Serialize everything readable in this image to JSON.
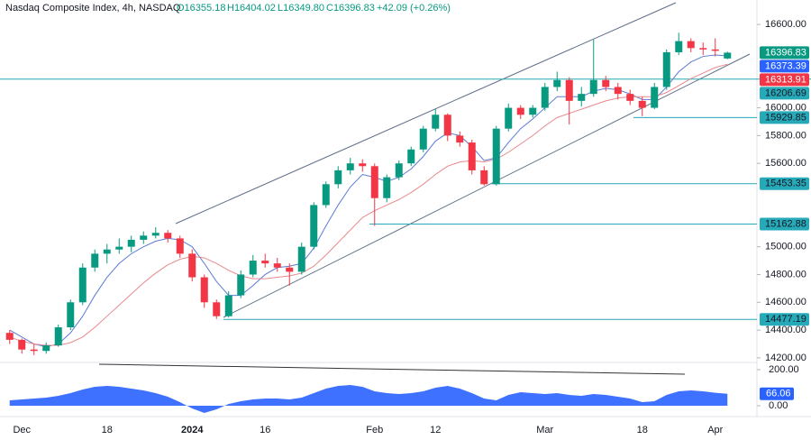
{
  "chart_data": {
    "type": "candlestick",
    "title": "Nasdaq Composite Index, 4h, NASDAQ",
    "quote": [
      "O16355.18",
      "H16404.02",
      "L16349.80",
      "C16396.83"
    ],
    "change": "+42.09 (+0.26%)",
    "categories": [
      null,
      "Dec",
      null,
      null,
      null,
      null,
      null,
      null,
      "18",
      null,
      null,
      null,
      null,
      null,
      null,
      "2024",
      null,
      null,
      null,
      null,
      null,
      "16",
      null,
      null,
      null,
      null,
      null,
      null,
      null,
      null,
      "Feb",
      null,
      null,
      null,
      null,
      "12",
      null,
      null,
      null,
      null,
      null,
      null,
      null,
      null,
      "Mar",
      null,
      null,
      null,
      null,
      null,
      null,
      null,
      "18",
      null,
      null,
      null,
      null,
      null,
      "Apr",
      null
    ],
    "ohlc": [
      [
        14380,
        14400,
        14300,
        14330
      ],
      [
        14330,
        14340,
        14230,
        14260
      ],
      [
        14260,
        14300,
        14220,
        14250
      ],
      [
        14250,
        14310,
        14230,
        14290
      ],
      [
        14290,
        14440,
        14280,
        14420
      ],
      [
        14420,
        14620,
        14400,
        14600
      ],
      [
        14600,
        14880,
        14580,
        14850
      ],
      [
        14850,
        14980,
        14820,
        14950
      ],
      [
        14950,
        15020,
        14880,
        14980
      ],
      [
        14980,
        15060,
        14950,
        15000
      ],
      [
        15000,
        15080,
        14960,
        15050
      ],
      [
        15050,
        15110,
        15020,
        15080
      ],
      [
        15080,
        15140,
        15060,
        15100
      ],
      [
        15100,
        15120,
        15030,
        15060
      ],
      [
        15060,
        15080,
        14920,
        14950
      ],
      [
        14950,
        14980,
        14750,
        14780
      ],
      [
        14780,
        14800,
        14560,
        14600
      ],
      [
        14600,
        14620,
        14480,
        14500
      ],
      [
        14500,
        14680,
        14490,
        14650
      ],
      [
        14650,
        14830,
        14630,
        14800
      ],
      [
        14800,
        14940,
        14780,
        14900
      ],
      [
        14900,
        14950,
        14850,
        14880
      ],
      [
        14880,
        14920,
        14820,
        14850
      ],
      [
        14850,
        14880,
        14720,
        14820
      ],
      [
        14820,
        15030,
        14800,
        15000
      ],
      [
        15000,
        15320,
        14980,
        15300
      ],
      [
        15300,
        15470,
        15280,
        15450
      ],
      [
        15450,
        15580,
        15420,
        15550
      ],
      [
        15550,
        15640,
        15520,
        15600
      ],
      [
        15600,
        15630,
        15540,
        15580
      ],
      [
        15580,
        15600,
        15150,
        15350
      ],
      [
        15350,
        15520,
        15320,
        15500
      ],
      [
        15500,
        15620,
        15480,
        15600
      ],
      [
        15600,
        15720,
        15580,
        15700
      ],
      [
        15700,
        15870,
        15680,
        15850
      ],
      [
        15850,
        15990,
        15830,
        15950
      ],
      [
        15950,
        15960,
        15760,
        15800
      ],
      [
        15800,
        15830,
        15720,
        15750
      ],
      [
        15750,
        15770,
        15520,
        15550
      ],
      [
        15550,
        15580,
        15440,
        15450
      ],
      [
        15450,
        15870,
        15440,
        15850
      ],
      [
        15850,
        16030,
        15830,
        16000
      ],
      [
        16000,
        16020,
        15920,
        15950
      ],
      [
        15950,
        16020,
        15930,
        16000
      ],
      [
        16000,
        16180,
        15980,
        16150
      ],
      [
        16150,
        16260,
        16120,
        16200
      ],
      [
        16200,
        16220,
        15880,
        16050
      ],
      [
        16050,
        16150,
        16010,
        16100
      ],
      [
        16100,
        16490,
        16080,
        16200
      ],
      [
        16200,
        16230,
        16120,
        16150
      ],
      [
        16150,
        16180,
        16060,
        16100
      ],
      [
        16100,
        16130,
        16020,
        16050
      ],
      [
        16050,
        16080,
        15940,
        16000
      ],
      [
        16000,
        16180,
        15990,
        16150
      ],
      [
        16150,
        16420,
        16130,
        16400
      ],
      [
        16400,
        16540,
        16380,
        16480
      ],
      [
        16480,
        16500,
        16400,
        16430
      ],
      [
        16430,
        16470,
        16380,
        16420
      ],
      [
        16420,
        16500,
        16370,
        16410
      ],
      [
        16355.18,
        16404.02,
        16349.8,
        16396.83
      ]
    ],
    "up_color": "#089981",
    "down_color": "#f23645",
    "series": [
      {
        "color": "#5b7bd5",
        "values": [
          14400,
          14350,
          14300,
          14280,
          14300,
          14380,
          14500,
          14650,
          14780,
          14880,
          14950,
          15000,
          15040,
          15060,
          15050,
          15000,
          14880,
          14750,
          14650,
          14650,
          14720,
          14800,
          14850,
          14860,
          14880,
          14990,
          15150,
          15300,
          15430,
          15520,
          15500,
          15470,
          15500,
          15560,
          15650,
          15760,
          15820,
          15800,
          15720,
          15620,
          15640,
          15750,
          15850,
          15920,
          16000,
          16080,
          16080,
          16080,
          16120,
          16140,
          16130,
          16100,
          16060,
          16060,
          16150,
          16260,
          16330,
          16370,
          16380,
          16373.39
        ]
      },
      {
        "color": "#e8898e",
        "values": [
          14350,
          14320,
          14300,
          14290,
          14290,
          14310,
          14350,
          14420,
          14500,
          14580,
          14660,
          14740,
          14810,
          14870,
          14910,
          14930,
          14920,
          14880,
          14830,
          14790,
          14770,
          14770,
          14780,
          14790,
          14810,
          14860,
          14940,
          15030,
          15120,
          15210,
          15260,
          15300,
          15340,
          15390,
          15450,
          15520,
          15580,
          15610,
          15620,
          15610,
          15630,
          15680,
          15740,
          15800,
          15870,
          15930,
          15960,
          15990,
          16020,
          16050,
          16070,
          16080,
          16080,
          16080,
          16110,
          16160,
          16210,
          16250,
          16290,
          16313.91
        ]
      }
    ],
    "ylim": [
      14167,
      16776
    ],
    "yticks": [
      {
        "value": 16600,
        "label": "16600.00"
      },
      {
        "value": 16000,
        "label": "16000.00"
      },
      {
        "value": 15800,
        "label": "15800.00"
      },
      {
        "value": 15600,
        "label": "15600.00"
      },
      {
        "value": 15000,
        "label": "15000.00"
      },
      {
        "value": 14800,
        "label": "14800.00"
      },
      {
        "value": 14600,
        "label": "14600.00"
      },
      {
        "value": 14400,
        "label": "14400.00"
      },
      {
        "value": 14200,
        "label": "14200.00"
      }
    ],
    "price_labels": [
      {
        "value": 16396.83,
        "color": "#089981"
      },
      {
        "value": 16373.39,
        "color": "#2962ff"
      },
      {
        "value": 16313.91,
        "color": "#f23645"
      }
    ],
    "levels": [
      16206.69,
      15929.85,
      15453.35,
      15162.88,
      14477.19
    ],
    "level_color": "#26a9b8",
    "oscillator": {
      "color": "#2962ff",
      "values": [
        30,
        35,
        40,
        45,
        55,
        70,
        90,
        105,
        110,
        105,
        95,
        85,
        70,
        50,
        20,
        -15,
        -40,
        -20,
        10,
        25,
        35,
        40,
        40,
        35,
        45,
        70,
        95,
        110,
        115,
        105,
        80,
        70,
        65,
        70,
        80,
        100,
        110,
        95,
        70,
        40,
        30,
        60,
        75,
        70,
        65,
        70,
        60,
        55,
        65,
        60,
        50,
        40,
        20,
        25,
        60,
        80,
        85,
        80,
        72,
        66.06
      ],
      "last": 66.06,
      "ylim": [
        -50,
        225
      ],
      "yticks": [
        {
          "value": 200,
          "label": "200.00"
        },
        {
          "value": 0,
          "label": "0.00"
        }
      ]
    }
  }
}
